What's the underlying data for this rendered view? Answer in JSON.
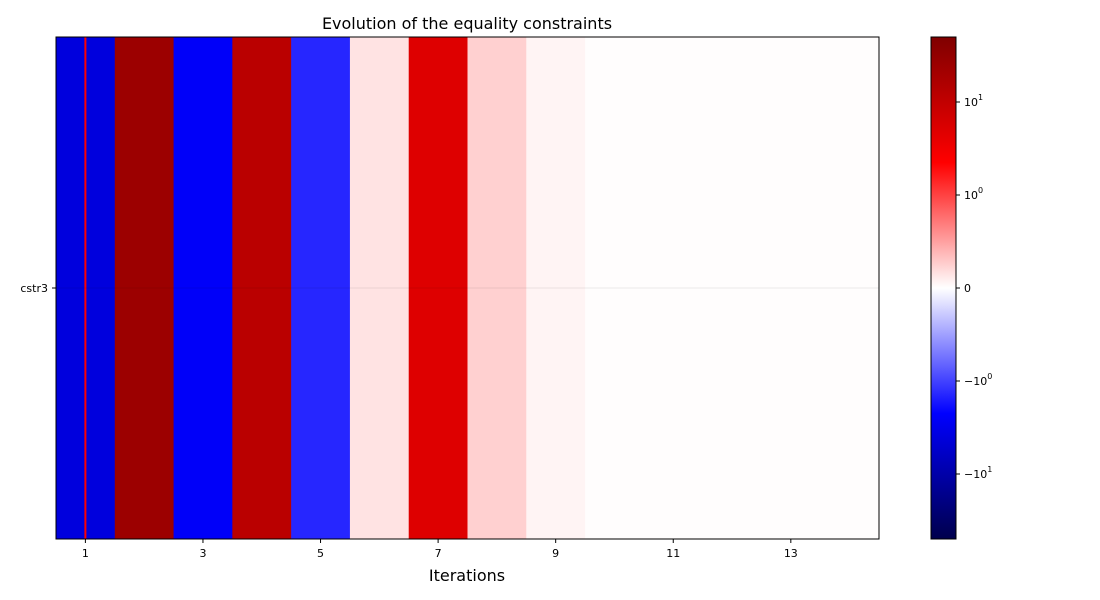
{
  "chart_data": {
    "type": "heatmap",
    "title": "Evolution of the equality constraints",
    "xlabel": "Iterations",
    "ylabel": "",
    "rows": [
      "cstr3"
    ],
    "x": [
      1,
      2,
      3,
      4,
      5,
      6,
      7,
      8,
      9,
      10,
      11,
      12,
      13,
      14
    ],
    "x_tick_labels": [
      "1",
      "3",
      "5",
      "7",
      "9",
      "11",
      "13"
    ],
    "values": [
      [
        -4,
        25,
        -2.5,
        12,
        -1.4,
        0.15,
        5,
        0.25,
        0.06,
        0.01,
        0.01,
        0.01,
        0.01,
        0.01
      ]
    ],
    "highlight_iteration": 1,
    "highlight_color": "#ff0000",
    "colorbar": {
      "scale": "symlog",
      "linthresh": 1,
      "range": [
        -50,
        50
      ],
      "cmap": "seismic",
      "tick_labels": [
        "10^1",
        "10^0",
        "0",
        "−10^0",
        "−10^1"
      ]
    }
  }
}
